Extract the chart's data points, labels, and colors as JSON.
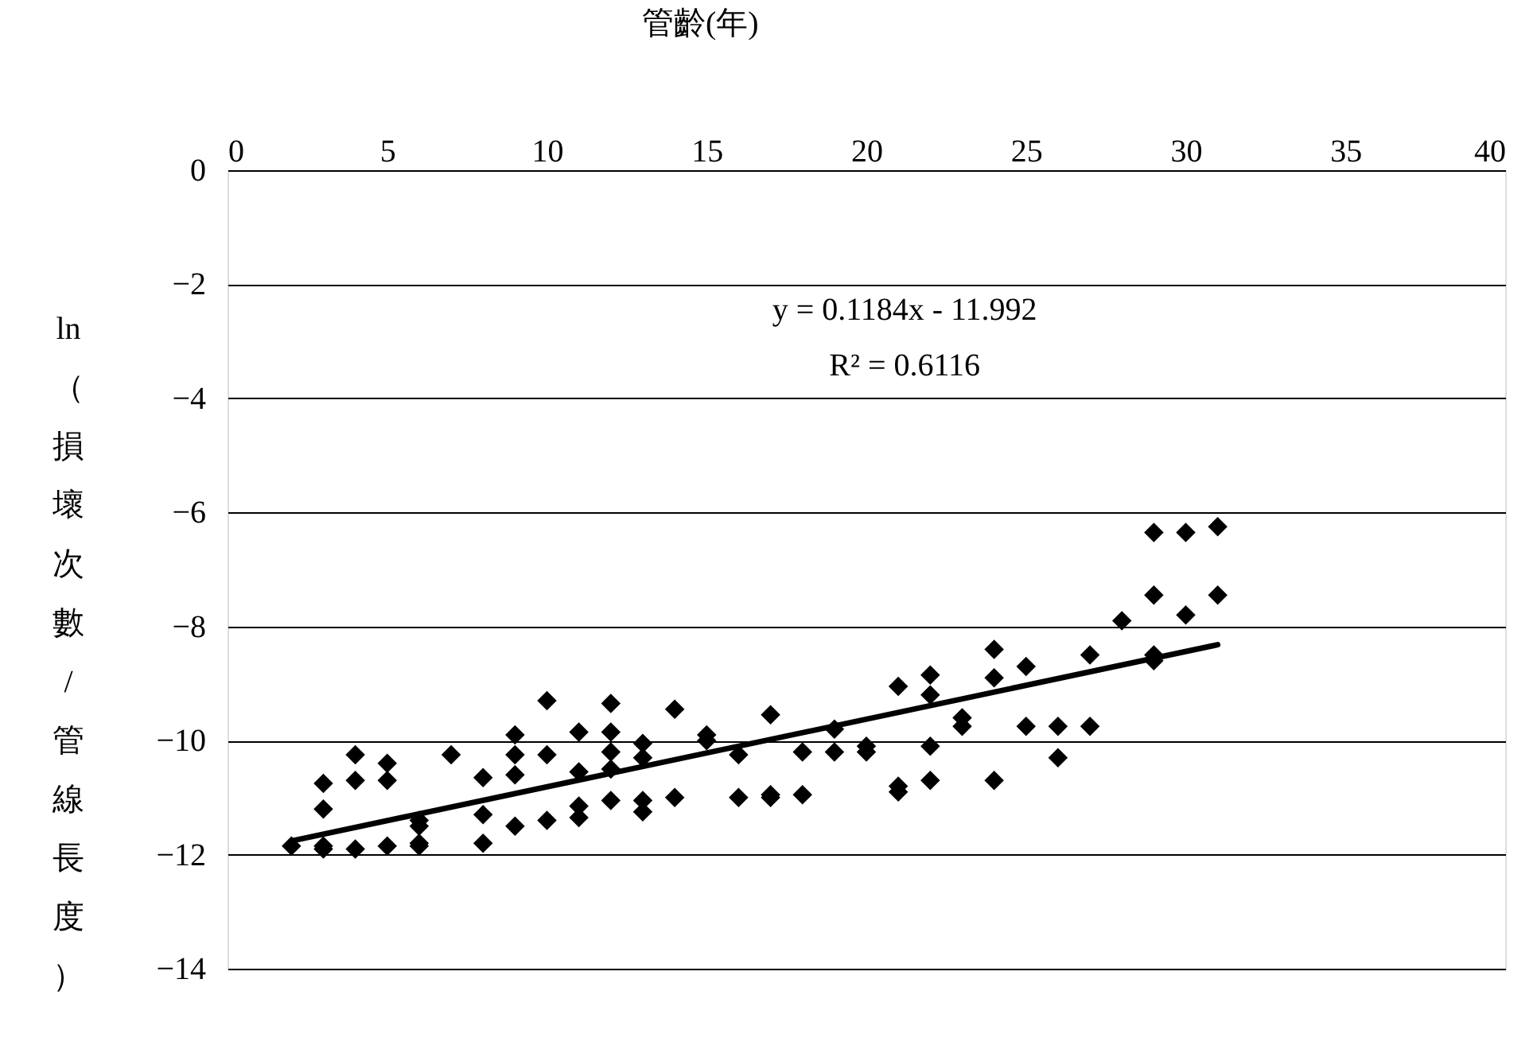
{
  "chart_data": {
    "type": "scatter",
    "xlabel": "管齡(年)",
    "ylabel": "ln（損壞次數/管線長度）",
    "xlim": [
      0,
      40
    ],
    "xticks": [
      0,
      5,
      10,
      15,
      20,
      25,
      30,
      35,
      40
    ],
    "ylim": [
      -14,
      0
    ],
    "yticks": [
      0,
      -2,
      -4,
      -6,
      -8,
      -10,
      -12,
      -14
    ],
    "grid": "y",
    "annotations": [
      "y = 0.1184x - 11.992",
      "R² = 0.6116"
    ],
    "series": [
      {
        "color": "#000000",
        "marker": "diamond",
        "x": [
          2,
          3,
          3,
          3,
          3,
          4,
          4,
          4,
          5,
          5,
          5,
          6,
          6,
          6,
          6,
          7,
          8,
          8,
          8,
          9,
          9,
          9,
          9,
          10,
          10,
          10,
          11,
          11,
          11,
          11,
          12,
          12,
          12,
          12,
          12,
          13,
          13,
          13,
          13,
          14,
          14,
          15,
          15,
          16,
          16,
          17,
          17,
          17,
          18,
          18,
          19,
          19,
          20,
          20,
          21,
          21,
          21,
          22,
          22,
          22,
          22,
          23,
          23,
          24,
          24,
          24,
          25,
          25,
          26,
          26,
          27,
          27,
          28,
          29,
          29,
          29,
          29,
          30,
          30,
          31,
          31
        ],
        "values": [
          -11.85,
          -11.9,
          -11.85,
          -11.2,
          -10.75,
          -11.9,
          -10.7,
          -10.25,
          -11.85,
          -10.7,
          -10.4,
          -11.85,
          -11.8,
          -11.5,
          -11.4,
          -10.25,
          -11.8,
          -11.3,
          -10.65,
          -11.5,
          -10.6,
          -10.25,
          -9.9,
          -11.4,
          -10.25,
          -9.3,
          -11.35,
          -11.15,
          -10.55,
          -9.85,
          -11.05,
          -10.5,
          -10.2,
          -9.85,
          -9.35,
          -11.25,
          -11.05,
          -10.3,
          -10.05,
          -11.0,
          -9.45,
          -10.0,
          -9.9,
          -11.0,
          -10.25,
          -11.0,
          -10.95,
          -9.55,
          -10.95,
          -10.2,
          -10.2,
          -9.8,
          -10.2,
          -10.1,
          -10.9,
          -10.8,
          -9.05,
          -10.7,
          -10.1,
          -9.2,
          -8.85,
          -9.75,
          -9.6,
          -10.7,
          -8.9,
          -8.4,
          -9.75,
          -8.7,
          -10.3,
          -9.75,
          -9.75,
          -8.5,
          -7.9,
          -8.6,
          -8.5,
          -7.45,
          -6.35,
          -7.8,
          -6.35,
          -7.45,
          -6.25
        ]
      },
      {
        "type": "line",
        "color": "#000000",
        "marker": "none",
        "line_style": "solid",
        "x": [
          2,
          31
        ],
        "values": [
          -11.76,
          -8.32
        ]
      }
    ]
  }
}
